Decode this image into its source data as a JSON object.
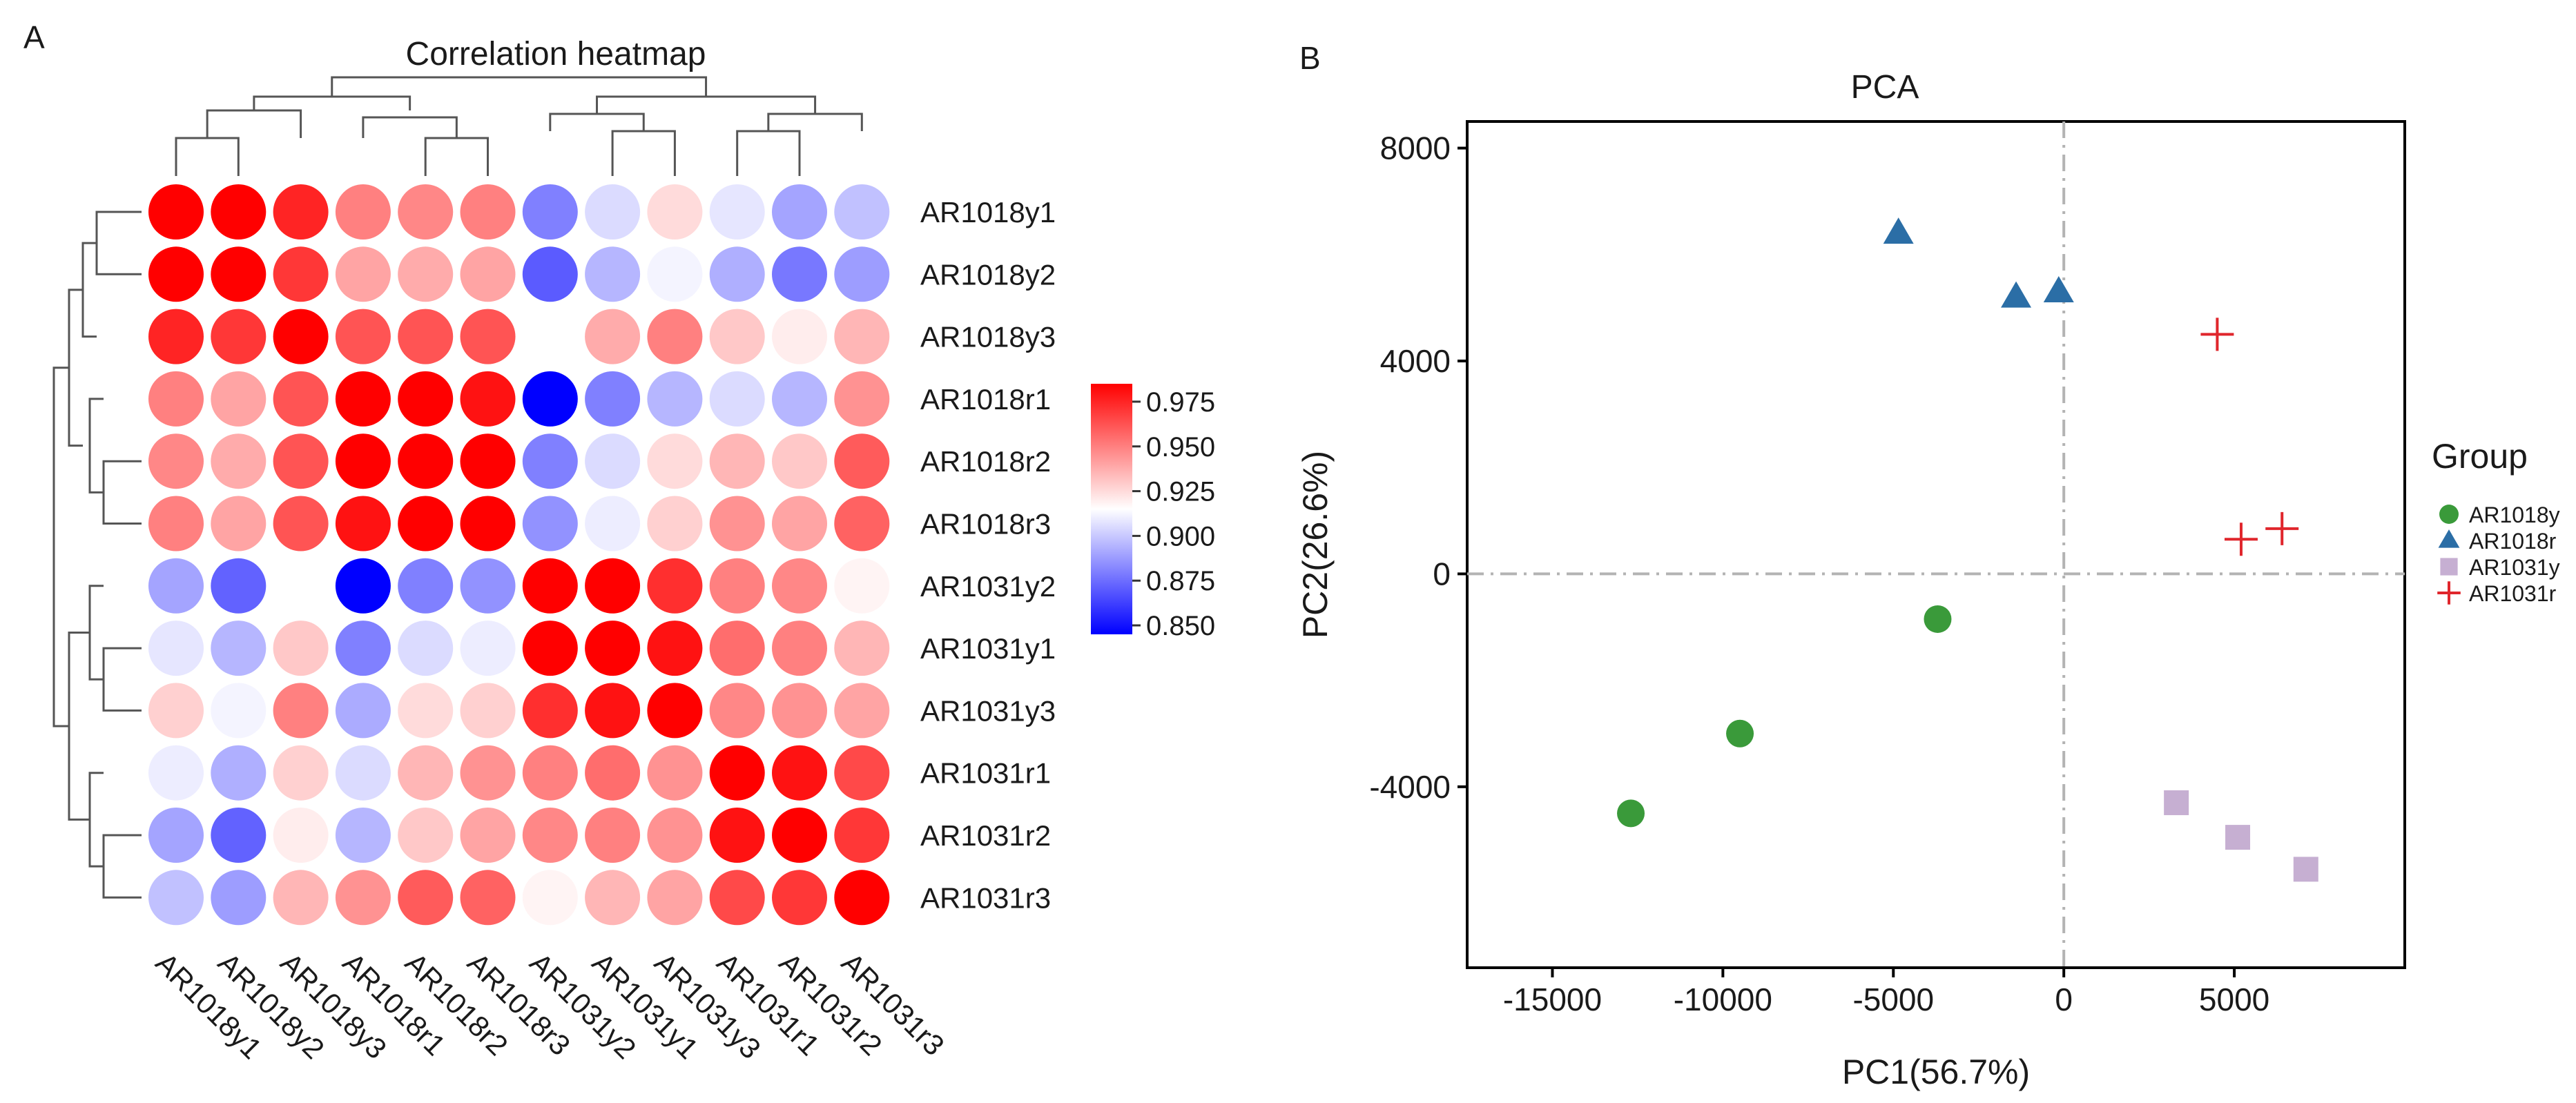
{
  "panel_labels": {
    "a": "A",
    "b": "B"
  },
  "colors": {
    "low": "#0000ff",
    "mid": "#ffffff",
    "high": "#ff0000",
    "AR1018y": "#3a9a3a",
    "AR1018r": "#2b6ea6",
    "AR1031y": "#c6afd2",
    "AR1031r": "#e0262c"
  },
  "chart_data": [
    {
      "type": "heatmap",
      "title": "Correlation heatmap",
      "columns": [
        "AR1018y1",
        "AR1018y2",
        "AR1018y3",
        "AR1018r1",
        "AR1018r2",
        "AR1018r3",
        "AR1031y2",
        "AR1031y1",
        "AR1031y3",
        "AR1031r1",
        "AR1031r2",
        "AR1031r3"
      ],
      "rows": [
        "AR1018y1",
        "AR1018y2",
        "AR1018y3",
        "AR1018r1",
        "AR1018r2",
        "AR1018r3",
        "AR1031y2",
        "AR1031y1",
        "AR1031y3",
        "AR1031r1",
        "AR1031r2",
        "AR1031r3"
      ],
      "values": [
        [
          1.0,
          0.985,
          0.975,
          0.95,
          0.948,
          0.95,
          0.88,
          0.905,
          0.925,
          0.908,
          0.89,
          0.898
        ],
        [
          0.985,
          1.0,
          0.97,
          0.94,
          0.938,
          0.94,
          0.87,
          0.895,
          0.912,
          0.893,
          0.878,
          0.888
        ],
        [
          0.975,
          0.97,
          1.0,
          0.962,
          0.962,
          0.962,
          0.915,
          0.938,
          0.95,
          0.93,
          0.92,
          0.935
        ],
        [
          0.95,
          0.94,
          0.962,
          1.0,
          0.985,
          0.98,
          0.845,
          0.88,
          0.895,
          0.905,
          0.895,
          0.945
        ],
        [
          0.948,
          0.938,
          0.962,
          0.985,
          1.0,
          0.985,
          0.88,
          0.905,
          0.925,
          0.935,
          0.93,
          0.96
        ],
        [
          0.95,
          0.94,
          0.962,
          0.98,
          0.985,
          1.0,
          0.885,
          0.91,
          0.928,
          0.945,
          0.94,
          0.958
        ],
        [
          0.89,
          0.872,
          0.915,
          0.845,
          0.88,
          0.885,
          1.0,
          0.985,
          0.972,
          0.95,
          0.948,
          0.918
        ],
        [
          0.908,
          0.895,
          0.93,
          0.88,
          0.905,
          0.91,
          0.985,
          1.0,
          0.98,
          0.955,
          0.95,
          0.935
        ],
        [
          0.928,
          0.912,
          0.95,
          0.892,
          0.925,
          0.928,
          0.972,
          0.98,
          1.0,
          0.948,
          0.945,
          0.94
        ],
        [
          0.91,
          0.893,
          0.928,
          0.905,
          0.935,
          0.945,
          0.95,
          0.955,
          0.945,
          1.0,
          0.98,
          0.965
        ],
        [
          0.89,
          0.872,
          0.92,
          0.895,
          0.93,
          0.94,
          0.948,
          0.95,
          0.945,
          0.98,
          1.0,
          0.97
        ],
        [
          0.898,
          0.888,
          0.935,
          0.945,
          0.96,
          0.958,
          0.918,
          0.935,
          0.94,
          0.965,
          0.97,
          1.0
        ]
      ],
      "colorbar": {
        "min": 0.845,
        "max": 0.985,
        "ticks": [
          0.975,
          0.95,
          0.925,
          0.9,
          0.875,
          0.85
        ],
        "tick_labels": [
          "0.975",
          "0.950",
          "0.925",
          "0.900",
          "0.875",
          "0.850"
        ]
      },
      "column_dendrogram": true,
      "row_dendrogram": true
    },
    {
      "type": "scatter",
      "title": "PCA",
      "xlabel": "PC1(56.7%)",
      "ylabel": "PC2(26.6%)",
      "xlim": [
        -17500,
        10000
      ],
      "ylim": [
        -7400,
        8500
      ],
      "xticks": [
        -15000,
        -10000,
        -5000,
        0,
        5000
      ],
      "xtick_labels": [
        "-15000",
        "-10000",
        "-5000",
        "0",
        "5000"
      ],
      "yticks": [
        8000,
        4000,
        0,
        -4000
      ],
      "ytick_labels": [
        "8000",
        "4000",
        "0",
        "-4000"
      ],
      "reference_lines": {
        "x": 0,
        "y": 0
      },
      "legend_title": "Group",
      "legend_position": "right",
      "series": [
        {
          "name": "AR1018y",
          "marker": "circle",
          "x": [
            -12700,
            -9500,
            -3700
          ],
          "y": [
            -4500,
            -3000,
            -850
          ]
        },
        {
          "name": "AR1018r",
          "marker": "triangle",
          "x": [
            -4850,
            -1400,
            -150
          ],
          "y": [
            6400,
            5200,
            5300
          ]
        },
        {
          "name": "AR1031y",
          "marker": "square",
          "x": [
            3300,
            5100,
            7100
          ],
          "y": [
            -4300,
            -4950,
            -5550
          ]
        },
        {
          "name": "AR1031r",
          "marker": "plus",
          "x": [
            4500,
            5200,
            6400
          ],
          "y": [
            4500,
            650,
            850
          ]
        }
      ]
    }
  ]
}
